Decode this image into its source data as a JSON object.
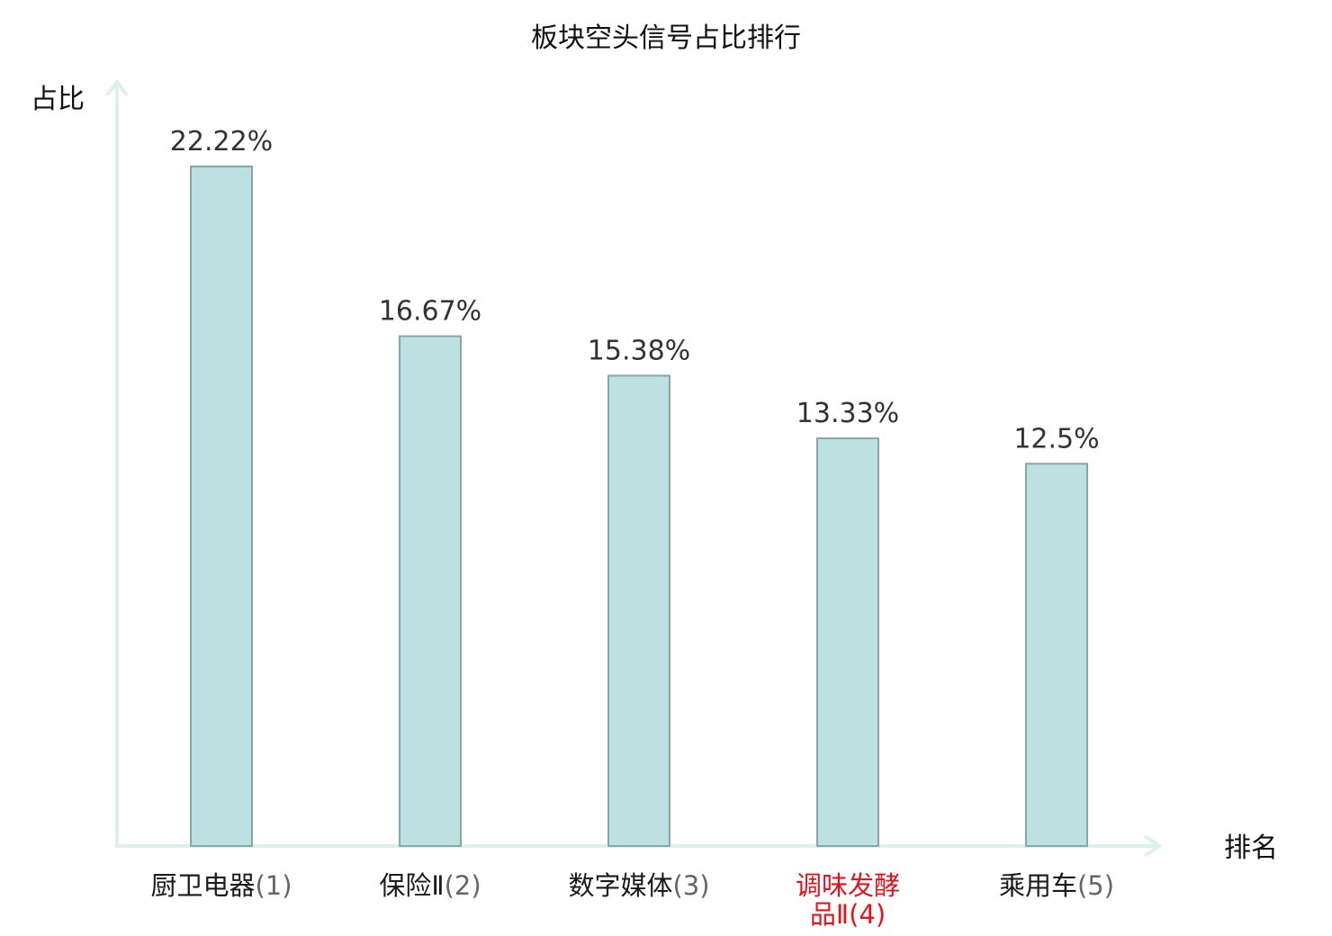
{
  "chart_data": {
    "type": "bar",
    "title": "板块空头信号占比排行",
    "ylabel": "占比",
    "xlabel": "排名",
    "categories": [
      {
        "name": "厨卫电器",
        "rank": "(1)",
        "lines": [
          "厨卫电器"
        ],
        "highlight": false
      },
      {
        "name": "保险Ⅱ",
        "rank": "(2)",
        "lines": [
          "保险Ⅱ"
        ],
        "highlight": false
      },
      {
        "name": "数字媒体",
        "rank": "(3)",
        "lines": [
          "数字媒体"
        ],
        "highlight": false
      },
      {
        "name": "调味发酵品Ⅱ",
        "rank": "(4)",
        "lines": [
          "调味发酵",
          "品Ⅱ"
        ],
        "highlight": true
      },
      {
        "name": "乘用车",
        "rank": "(5)",
        "lines": [
          "乘用车"
        ],
        "highlight": false
      }
    ],
    "values": [
      22.22,
      16.67,
      15.38,
      13.33,
      12.5
    ],
    "value_labels": [
      "22.22%",
      "16.67%",
      "15.38%",
      "13.33%",
      "12.5%"
    ],
    "ylim": [
      0,
      25
    ],
    "grid": false,
    "legend": "none"
  },
  "colors": {
    "bar_fill": "#bde0e1",
    "bar_stroke": "#86a7a8",
    "axis": "#dcf0ee",
    "highlight_text": "#e0141e"
  }
}
